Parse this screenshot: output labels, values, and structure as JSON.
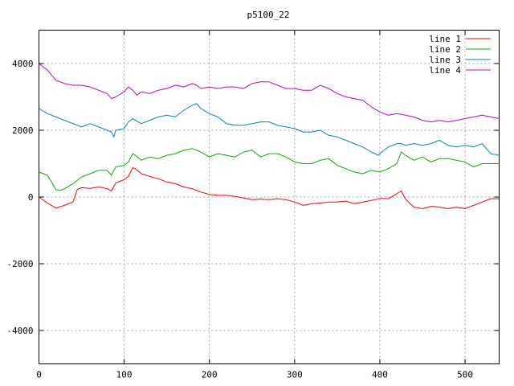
{
  "chart_data": {
    "type": "line",
    "title": "p5100_22",
    "xlabel": "",
    "ylabel": "",
    "xlim": [
      0,
      540
    ],
    "ylim": [
      -5000,
      5000
    ],
    "x_ticks": [
      0,
      100,
      200,
      300,
      400,
      500
    ],
    "y_ticks": [
      -4000,
      -2000,
      0,
      2000,
      4000
    ],
    "grid": true,
    "legend_position": "top-right",
    "series": [
      {
        "name": "line 1",
        "color": "#ff0000",
        "x": [
          0,
          10,
          20,
          30,
          40,
          45,
          50,
          60,
          70,
          80,
          85,
          90,
          100,
          105,
          110,
          113,
          120,
          130,
          140,
          150,
          160,
          170,
          180,
          190,
          200,
          210,
          220,
          230,
          240,
          250,
          260,
          270,
          280,
          290,
          300,
          310,
          320,
          330,
          340,
          350,
          360,
          370,
          380,
          390,
          400,
          410,
          420,
          425,
          430,
          440,
          450,
          460,
          470,
          480,
          490,
          500,
          510,
          520,
          530,
          540
        ],
        "y": [
          0,
          -180,
          -330,
          -250,
          -150,
          230,
          280,
          260,
          300,
          250,
          180,
          420,
          520,
          620,
          880,
          850,
          700,
          620,
          550,
          450,
          400,
          300,
          250,
          150,
          80,
          50,
          50,
          20,
          -30,
          -80,
          -60,
          -80,
          -50,
          -80,
          -150,
          -250,
          -200,
          -180,
          -150,
          -150,
          -120,
          -200,
          -150,
          -100,
          -40,
          -50,
          100,
          180,
          -60,
          -300,
          -350,
          -280,
          -300,
          -350,
          -300,
          -350,
          -250,
          -150,
          -50,
          -50
        ]
      },
      {
        "name": "line 2",
        "color": "#00b000",
        "x": [
          0,
          10,
          20,
          25,
          30,
          40,
          50,
          60,
          70,
          80,
          85,
          90,
          100,
          105,
          110,
          113,
          120,
          130,
          140,
          150,
          160,
          170,
          180,
          190,
          200,
          210,
          220,
          230,
          240,
          250,
          260,
          270,
          280,
          290,
          300,
          310,
          320,
          330,
          340,
          350,
          360,
          370,
          380,
          390,
          400,
          410,
          420,
          425,
          430,
          440,
          450,
          460,
          470,
          480,
          490,
          500,
          510,
          520,
          530,
          540
        ],
        "y": [
          750,
          650,
          220,
          200,
          250,
          400,
          600,
          700,
          800,
          800,
          650,
          900,
          950,
          1050,
          1300,
          1250,
          1100,
          1200,
          1150,
          1250,
          1300,
          1400,
          1450,
          1350,
          1200,
          1300,
          1250,
          1200,
          1350,
          1400,
          1200,
          1300,
          1300,
          1200,
          1050,
          1000,
          1000,
          1100,
          1150,
          950,
          850,
          750,
          700,
          800,
          750,
          850,
          1000,
          1350,
          1250,
          1100,
          1200,
          1050,
          1150,
          1150,
          1100,
          1050,
          900,
          1000,
          1000,
          1000
        ]
      },
      {
        "name": "line 3",
        "color": "#0080d0",
        "x": [
          0,
          10,
          20,
          30,
          40,
          50,
          60,
          70,
          80,
          85,
          88,
          90,
          100,
          105,
          110,
          113,
          120,
          130,
          140,
          150,
          160,
          170,
          180,
          185,
          190,
          200,
          210,
          220,
          230,
          240,
          250,
          260,
          270,
          280,
          290,
          300,
          310,
          320,
          330,
          340,
          350,
          360,
          370,
          380,
          390,
          398,
          400,
          410,
          420,
          425,
          430,
          440,
          450,
          460,
          470,
          480,
          490,
          500,
          510,
          520,
          530,
          540
        ],
        "y": [
          2650,
          2500,
          2400,
          2300,
          2200,
          2100,
          2200,
          2100,
          2000,
          1950,
          1800,
          2000,
          2050,
          2250,
          2350,
          2300,
          2200,
          2300,
          2400,
          2450,
          2400,
          2600,
          2750,
          2800,
          2650,
          2500,
          2400,
          2200,
          2150,
          2150,
          2200,
          2250,
          2250,
          2150,
          2100,
          2050,
          1950,
          1950,
          2000,
          1850,
          1800,
          1700,
          1600,
          1500,
          1350,
          1250,
          1300,
          1500,
          1600,
          1600,
          1550,
          1600,
          1550,
          1600,
          1700,
          1550,
          1500,
          1550,
          1500,
          1600,
          1300,
          1250
        ]
      },
      {
        "name": "line 4",
        "color": "#c000d0",
        "x": [
          0,
          10,
          20,
          30,
          40,
          50,
          60,
          70,
          80,
          85,
          90,
          100,
          105,
          110,
          115,
          120,
          130,
          140,
          150,
          160,
          170,
          180,
          185,
          190,
          200,
          210,
          220,
          230,
          240,
          250,
          260,
          270,
          280,
          290,
          300,
          310,
          320,
          330,
          340,
          350,
          360,
          370,
          380,
          390,
          400,
          410,
          420,
          430,
          440,
          450,
          460,
          470,
          480,
          490,
          500,
          510,
          520,
          530,
          540
        ],
        "y": [
          4000,
          3800,
          3500,
          3400,
          3350,
          3350,
          3300,
          3200,
          3100,
          2950,
          3000,
          3150,
          3300,
          3200,
          3050,
          3150,
          3100,
          3200,
          3250,
          3350,
          3300,
          3400,
          3350,
          3250,
          3300,
          3250,
          3300,
          3300,
          3250,
          3400,
          3450,
          3450,
          3350,
          3250,
          3250,
          3200,
          3200,
          3350,
          3250,
          3100,
          3000,
          2950,
          2900,
          2700,
          2550,
          2450,
          2500,
          2450,
          2400,
          2300,
          2250,
          2300,
          2250,
          2300,
          2350,
          2400,
          2450,
          2400,
          2350
        ]
      }
    ]
  }
}
